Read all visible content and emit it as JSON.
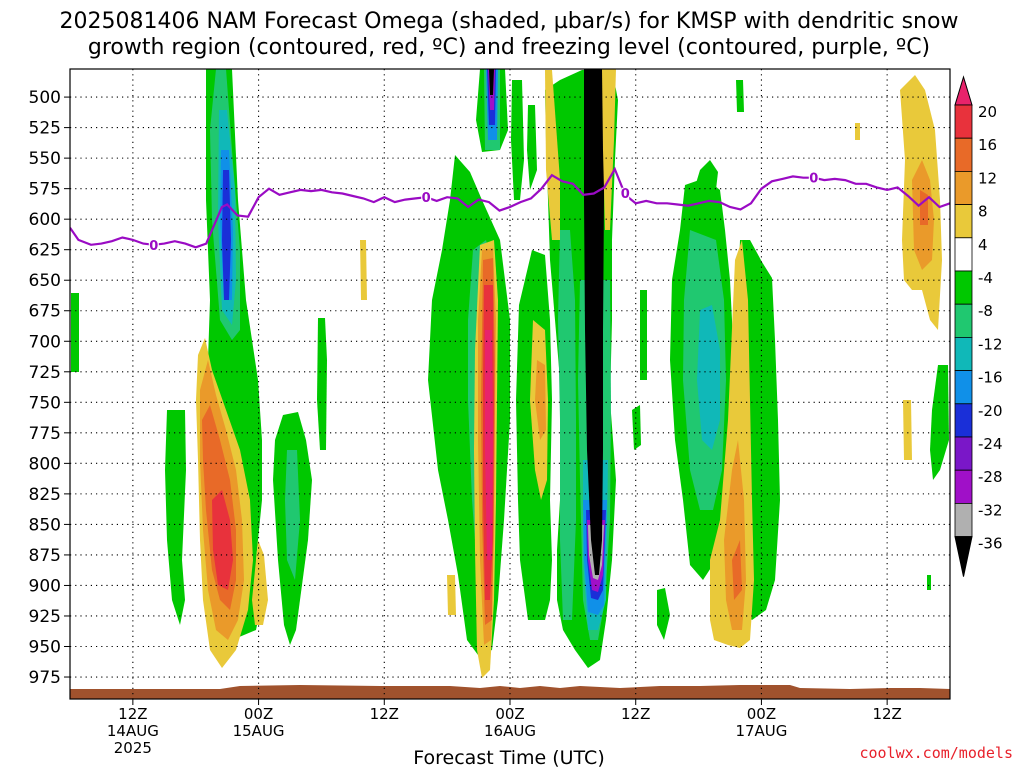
{
  "chart_data": {
    "type": "heatmap",
    "title_line1": "2025081406 NAM Forecast Omega (shaded, µbar/s) for KMSP with dendritic snow",
    "title_line2": "growth region (contoured, red, ºC) and freezing level (contoured, purple, ºC)",
    "xlabel": "Forecast Time (UTC)",
    "ylabel": "",
    "y_axis": {
      "ticks": [
        500,
        525,
        550,
        575,
        600,
        625,
        650,
        675,
        700,
        725,
        750,
        775,
        800,
        825,
        850,
        875,
        900,
        925,
        950,
        975
      ],
      "range": [
        477,
        993
      ],
      "inverted": true,
      "grid": true
    },
    "x_axis": {
      "range_hours": [
        0,
        84
      ],
      "ticks": [
        {
          "hour": 6,
          "label": "12Z",
          "sub": "14AUG",
          "year": "2025"
        },
        {
          "hour": 18,
          "label": "00Z",
          "sub": "15AUG",
          "year": ""
        },
        {
          "hour": 30,
          "label": "12Z",
          "sub": "",
          "year": ""
        },
        {
          "hour": 42,
          "label": "00Z",
          "sub": "16AUG",
          "year": ""
        },
        {
          "hour": 54,
          "label": "12Z",
          "sub": "",
          "year": ""
        },
        {
          "hour": 66,
          "label": "00Z",
          "sub": "17AUG",
          "year": ""
        },
        {
          "hour": 78,
          "label": "12Z",
          "sub": "",
          "year": ""
        }
      ],
      "grid": true
    },
    "colorbar": {
      "levels": [
        20,
        16,
        12,
        8,
        4,
        -4,
        -8,
        -12,
        -16,
        -20,
        -24,
        -28,
        -32,
        -36
      ],
      "colors": [
        "#e8236b",
        "#e8323c",
        "#e86a28",
        "#ea9a2a",
        "#e9c93a",
        "#ffffff",
        "#00c800",
        "#20c870",
        "#10b8b8",
        "#1090e8",
        "#1a2fd8",
        "#7a17c8",
        "#a010c8",
        "#b0b0b0",
        "#000000"
      ]
    },
    "freezing_level": {
      "label": "0",
      "color": "#9a0bc4",
      "hours": [
        0,
        0.8,
        2,
        3,
        4,
        5,
        6,
        7,
        8,
        9,
        10,
        11,
        12,
        13,
        14,
        14.5,
        15,
        16,
        17,
        18,
        19,
        20,
        21,
        22,
        23,
        24,
        25,
        26,
        27,
        28,
        29,
        30,
        31,
        32,
        33,
        34,
        35,
        36,
        37,
        38,
        39,
        40,
        41,
        42,
        43,
        44,
        45,
        46,
        47,
        48,
        49,
        50,
        51,
        52,
        53,
        54,
        55,
        56,
        57,
        58,
        59,
        60,
        61,
        62,
        63,
        64,
        65,
        66,
        67,
        68,
        69,
        70,
        71,
        72,
        73,
        74,
        75,
        76,
        77,
        78,
        79,
        80,
        81,
        82,
        83,
        84
      ],
      "pressure_hpa": [
        607,
        617,
        621,
        620,
        618,
        615,
        617,
        620,
        621,
        620,
        618,
        620,
        623,
        620,
        600,
        590,
        588,
        597,
        598,
        582,
        575,
        580,
        578,
        576,
        577,
        576,
        578,
        579,
        581,
        583,
        586,
        582,
        586,
        584,
        583,
        582,
        585,
        582,
        583,
        590,
        584,
        586,
        593,
        590,
        586,
        583,
        575,
        564,
        569,
        571,
        580,
        579,
        574,
        559,
        580,
        587,
        585,
        587,
        587,
        588,
        589,
        587,
        585,
        586,
        590,
        592,
        587,
        575,
        569,
        567,
        565,
        566,
        566,
        568,
        567,
        568,
        571,
        571,
        574,
        576,
        574,
        581,
        589,
        582,
        590,
        587
      ]
    },
    "ground_color": "#a0522d"
  },
  "watermark": "coolwx.com/models"
}
